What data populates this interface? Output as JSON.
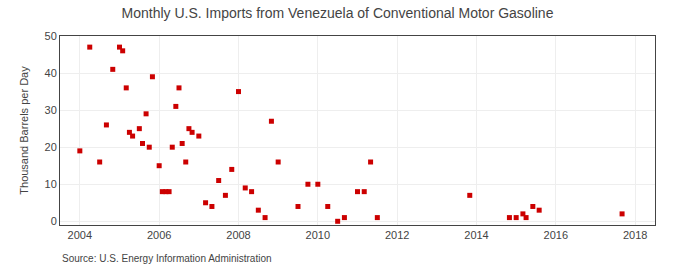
{
  "chart_data": {
    "type": "scatter",
    "title": "Monthly U.S. Imports from Venezuela of Conventional Motor Gasoline",
    "ylabel": "Thousand Barrels per Day",
    "annotations": [
      "Source: U.S. Energy Information Administration"
    ],
    "color": "#cc0000",
    "marker": "square",
    "grid": true,
    "xlim": [
      2003.5,
      2018.5
    ],
    "ylim": [
      -1,
      50
    ],
    "xticks": [
      2004,
      2006,
      2008,
      2010,
      2012,
      2014,
      2016,
      2018
    ],
    "yticks": [
      0,
      10,
      20,
      30,
      40,
      50
    ],
    "x": [
      2004.0,
      2004.25,
      2004.5,
      2004.67,
      2004.83,
      2005.0,
      2005.08,
      2005.17,
      2005.25,
      2005.33,
      2005.5,
      2005.58,
      2005.67,
      2005.75,
      2005.83,
      2006.0,
      2006.08,
      2006.17,
      2006.25,
      2006.33,
      2006.42,
      2006.5,
      2006.58,
      2006.67,
      2006.75,
      2006.83,
      2007.0,
      2007.17,
      2007.33,
      2007.5,
      2007.67,
      2007.83,
      2008.0,
      2008.17,
      2008.33,
      2008.5,
      2008.67,
      2008.83,
      2009.0,
      2009.5,
      2009.75,
      2010.0,
      2010.25,
      2010.5,
      2010.67,
      2011.0,
      2011.17,
      2011.33,
      2011.5,
      2013.83,
      2014.83,
      2015.0,
      2015.17,
      2015.25,
      2015.42,
      2015.58,
      2017.67
    ],
    "values": [
      19,
      47,
      16,
      26,
      41,
      47,
      46,
      36,
      24,
      23,
      25,
      21,
      29,
      20,
      39,
      15,
      8,
      8,
      8,
      20,
      31,
      36,
      21,
      16,
      25,
      24,
      23,
      5,
      4,
      11,
      7,
      14,
      35,
      9,
      8,
      3,
      1,
      27,
      16,
      4,
      10,
      10,
      4,
      0,
      1,
      8,
      8,
      16,
      1,
      7,
      1,
      1,
      2,
      1,
      4,
      3,
      2
    ]
  }
}
